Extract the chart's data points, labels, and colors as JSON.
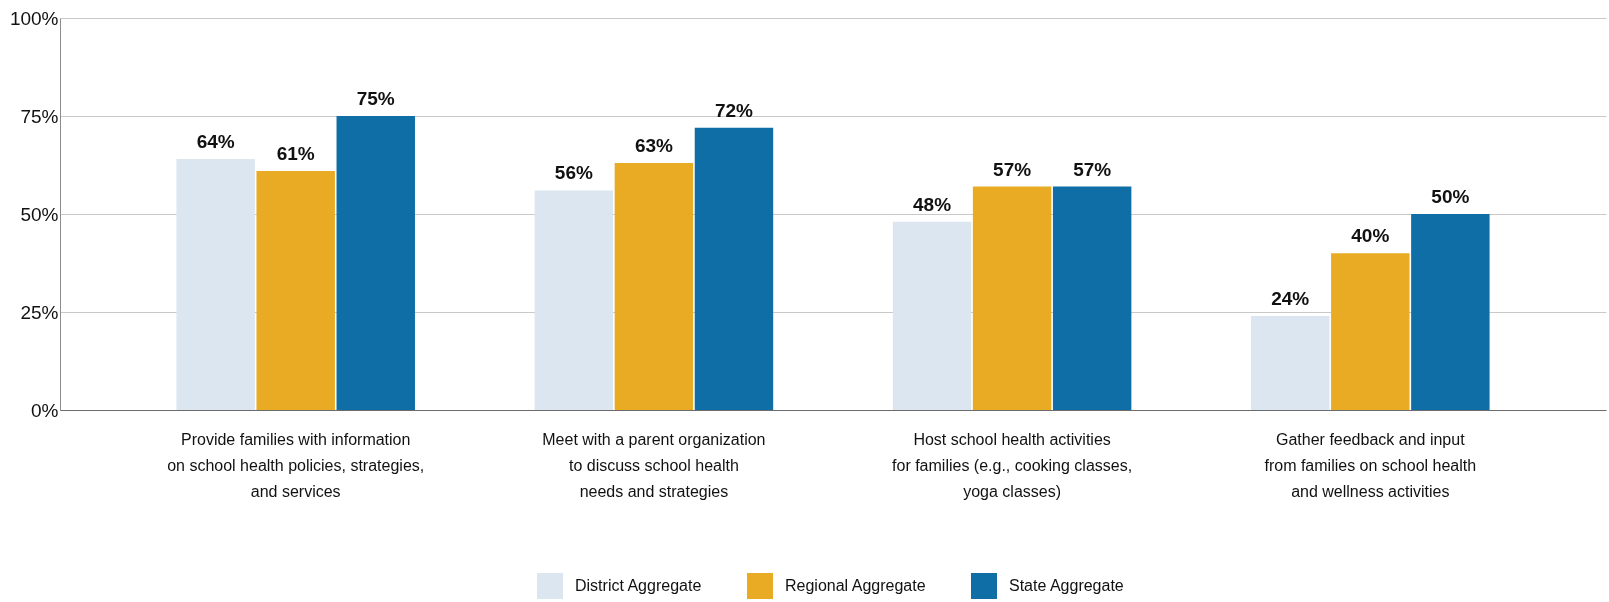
{
  "chart_data": {
    "type": "bar",
    "categories": [
      "Provide families with information\non school health policies, strategies,\nand services",
      "Meet with a parent organization\nto discuss school health\nneeds and strategies",
      "Host school health activities\nfor families (e.g., cooking classes,\nyoga classes)",
      "Gather feedback and input\nfrom families on school health\nand wellness activities"
    ],
    "series": [
      {
        "name": "District Aggregate",
        "color": "#dce6f0",
        "values": [
          64,
          56,
          48,
          24
        ],
        "value_labels": [
          "64%",
          "56%",
          "48%",
          "24%"
        ]
      },
      {
        "name": "Regional Aggregate",
        "color": "#e9ab23",
        "values": [
          61,
          63,
          57,
          40
        ],
        "value_labels": [
          "61%",
          "63%",
          "57%",
          "40%"
        ]
      },
      {
        "name": "State Aggregate",
        "color": "#106ea6",
        "values": [
          75,
          72,
          57,
          50
        ],
        "value_labels": [
          "75%",
          "72%",
          "57%",
          "50%"
        ]
      }
    ],
    "ylim": [
      0,
      100
    ],
    "yticks": [
      {
        "value": 0,
        "label": "0%"
      },
      {
        "value": 25,
        "label": "25%"
      },
      {
        "value": 50,
        "label": "50%"
      },
      {
        "value": 75,
        "label": "75%"
      },
      {
        "value": 100,
        "label": "100%"
      }
    ],
    "grid": "y",
    "legend": "bottom"
  }
}
